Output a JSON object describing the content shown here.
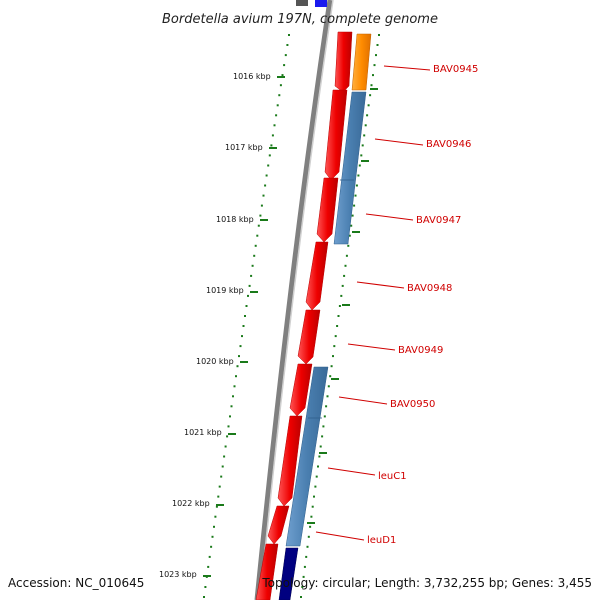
{
  "title": "Bordetella avium 197N, complete genome",
  "accession_text": "Accession: NC_010645",
  "topology_text": "Topology: circular; Length: 3,732,255 bp; Genes: 3,455",
  "ticks": [
    {
      "label": "1016 kbp"
    },
    {
      "label": "1017 kbp"
    },
    {
      "label": "1018 kbp"
    },
    {
      "label": "1019 kbp"
    },
    {
      "label": "1020 kbp"
    },
    {
      "label": "1021 kbp"
    },
    {
      "label": "1022 kbp"
    },
    {
      "label": "1023 kbp"
    }
  ],
  "genes": [
    {
      "label": "BAV0945"
    },
    {
      "label": "BAV0946"
    },
    {
      "label": "BAV0947"
    },
    {
      "label": "BAV0948"
    },
    {
      "label": "BAV0949"
    },
    {
      "label": "BAV0950"
    },
    {
      "label": "leuC1"
    },
    {
      "label": "leuD1"
    }
  ],
  "colors": {
    "cds_forward": "#ee0000",
    "feature_blue": "#4a7fb0",
    "feature_orange": "#ff8c00",
    "feature_navy": "#000080",
    "backbone": "#808080",
    "tick_green": "#1a7a1a",
    "label_red": "#d00000"
  }
}
